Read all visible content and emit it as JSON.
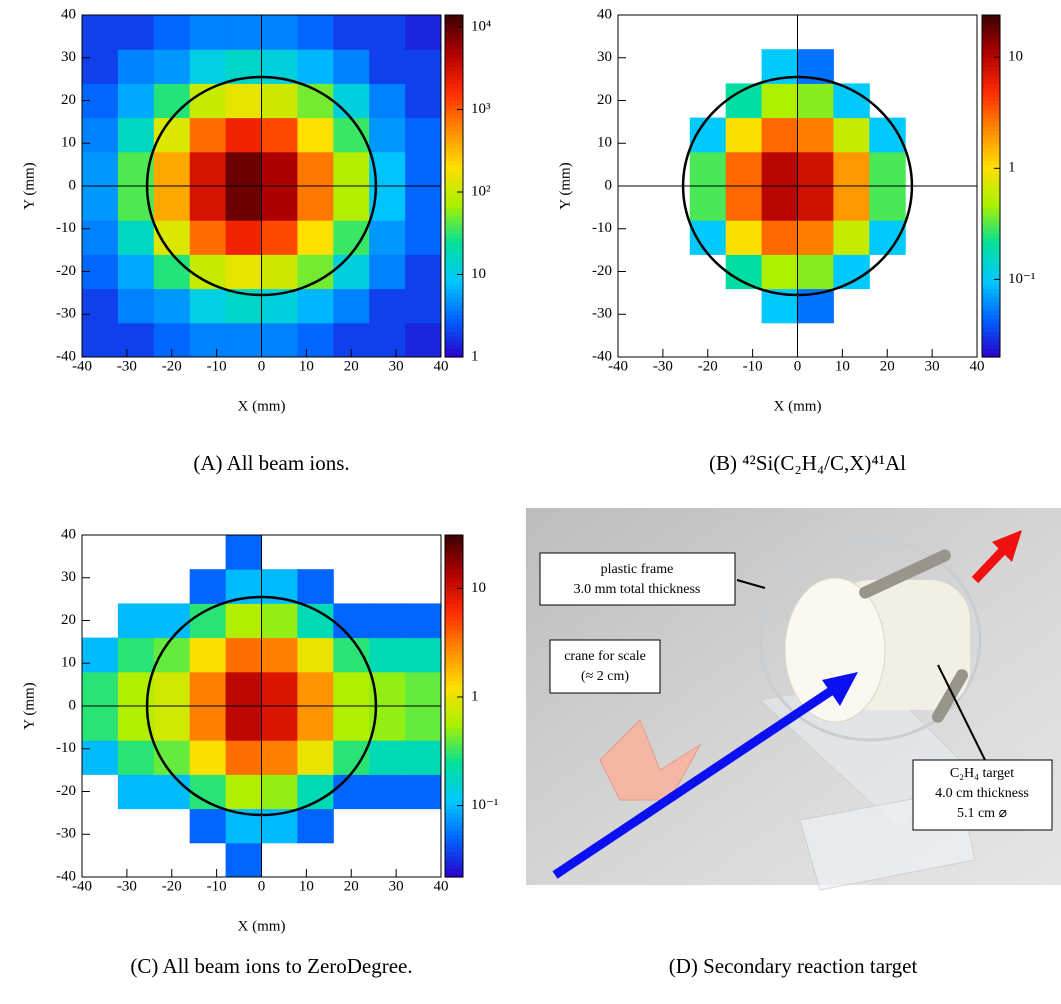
{
  "chart_data": [
    {
      "type": "heatmap",
      "caption": "(A) All beam ions.",
      "xlabel": "X (mm)",
      "ylabel": "Y (mm)",
      "xlim": [
        -40,
        40
      ],
      "ylim": [
        -40,
        40
      ],
      "xticks": [
        -40,
        -30,
        -20,
        -10,
        0,
        10,
        20,
        30,
        40
      ],
      "yticks": [
        -40,
        -30,
        -20,
        -10,
        0,
        10,
        20,
        30,
        40
      ],
      "xbins": [
        -40,
        -32,
        -24,
        -16,
        -8,
        0,
        8,
        16,
        24,
        32,
        40
      ],
      "ybins": [
        -40,
        -32,
        -24,
        -16,
        -8,
        0,
        8,
        16,
        24,
        32,
        40
      ],
      "z": [
        [
          2,
          2,
          3,
          4,
          4,
          4,
          3,
          2,
          2,
          1.5
        ],
        [
          2,
          4,
          5,
          11,
          15,
          12,
          7,
          4,
          2,
          2
        ],
        [
          3,
          6,
          30,
          100,
          150,
          110,
          50,
          12,
          4,
          2
        ],
        [
          4,
          16,
          130,
          800,
          2000,
          1200,
          200,
          35,
          5,
          3
        ],
        [
          5,
          40,
          400,
          3000,
          9000,
          5000,
          700,
          80,
          8,
          3
        ],
        [
          5,
          40,
          400,
          3000,
          9000,
          5000,
          700,
          80,
          8,
          3
        ],
        [
          4,
          16,
          130,
          800,
          2000,
          1200,
          200,
          35,
          5,
          3
        ],
        [
          3,
          6,
          30,
          100,
          150,
          110,
          50,
          12,
          4,
          2
        ],
        [
          2,
          4,
          5,
          11,
          15,
          12,
          7,
          4,
          2,
          2
        ],
        [
          2,
          2,
          3,
          4,
          4,
          4,
          3,
          2,
          2,
          1.5
        ]
      ],
      "zlim": [
        1,
        14000
      ],
      "zlog": true,
      "zticks": [
        1,
        10,
        {
          "value": 100,
          "label": "10²"
        },
        {
          "value": 1000,
          "label": "10³"
        },
        {
          "value": 10000,
          "label": "10⁴"
        }
      ],
      "circle_radius": 25.5
    },
    {
      "type": "heatmap",
      "caption": "(B) ⁴²Si(C₂H₄/C,X)⁴¹Al",
      "xlabel": "X (mm)",
      "ylabel": "Y (mm)",
      "xlim": [
        -40,
        40
      ],
      "ylim": [
        -40,
        40
      ],
      "xticks": [
        -40,
        -30,
        -20,
        -10,
        0,
        10,
        20,
        30,
        40
      ],
      "yticks": [
        -40,
        -30,
        -20,
        -10,
        0,
        10,
        20,
        30,
        40
      ],
      "xbins": [
        -40,
        -32,
        -24,
        -16,
        -8,
        0,
        8,
        16,
        24,
        32,
        40
      ],
      "ybins": [
        -40,
        -32,
        -24,
        -16,
        -8,
        0,
        8,
        16,
        24,
        32,
        40
      ],
      "z": [
        [
          null,
          null,
          null,
          null,
          null,
          null,
          null,
          null,
          null,
          null
        ],
        [
          null,
          null,
          null,
          null,
          0.1,
          0.05,
          null,
          null,
          null,
          null
        ],
        [
          null,
          null,
          null,
          0.2,
          0.5,
          0.4,
          0.1,
          null,
          null,
          null
        ],
        [
          null,
          null,
          0.1,
          1,
          3,
          2.5,
          0.6,
          0.1,
          null,
          null
        ],
        [
          null,
          null,
          0.3,
          3,
          10,
          8,
          2,
          0.3,
          null,
          null
        ],
        [
          null,
          null,
          0.3,
          3,
          10,
          8,
          2,
          0.3,
          null,
          null
        ],
        [
          null,
          null,
          0.1,
          1,
          3,
          2.5,
          0.6,
          0.1,
          null,
          null
        ],
        [
          null,
          null,
          null,
          0.2,
          0.5,
          0.4,
          0.1,
          null,
          null,
          null
        ],
        [
          null,
          null,
          null,
          null,
          0.1,
          0.05,
          null,
          null,
          null,
          null
        ],
        [
          null,
          null,
          null,
          null,
          null,
          null,
          null,
          null,
          null,
          null
        ]
      ],
      "zlim": [
        0.02,
        24
      ],
      "zlog": true,
      "zticks": [
        {
          "value": 0.1,
          "label": "10⁻¹"
        },
        1,
        10
      ],
      "circle_radius": 25.5
    },
    {
      "type": "heatmap",
      "caption": "(C) All beam ions to ZeroDegree.",
      "xlabel": "X (mm)",
      "ylabel": "Y (mm)",
      "xlim": [
        -40,
        40
      ],
      "ylim": [
        -40,
        40
      ],
      "xticks": [
        -40,
        -30,
        -20,
        -10,
        0,
        10,
        20,
        30,
        40
      ],
      "yticks": [
        -40,
        -30,
        -20,
        -10,
        0,
        10,
        20,
        30,
        40
      ],
      "xbins": [
        -40,
        -32,
        -24,
        -16,
        -8,
        0,
        8,
        16,
        24,
        32,
        40
      ],
      "ybins": [
        -40,
        -32,
        -24,
        -16,
        -8,
        0,
        8,
        16,
        24,
        32,
        40
      ],
      "z": [
        [
          null,
          null,
          null,
          null,
          0.05,
          null,
          null,
          null,
          null,
          null
        ],
        [
          null,
          null,
          null,
          0.05,
          0.1,
          0.1,
          0.05,
          null,
          null,
          null
        ],
        [
          null,
          0.1,
          0.1,
          0.3,
          0.6,
          0.5,
          0.2,
          0.05,
          0.05,
          0.05
        ],
        [
          0.1,
          0.3,
          0.4,
          1.2,
          3.5,
          3,
          1,
          0.3,
          0.2,
          0.2
        ],
        [
          0.3,
          0.6,
          0.8,
          3,
          12,
          9,
          2.5,
          0.6,
          0.5,
          0.4
        ],
        [
          0.3,
          0.6,
          0.8,
          3,
          12,
          9,
          2.5,
          0.6,
          0.5,
          0.4
        ],
        [
          0.1,
          0.3,
          0.4,
          1.2,
          3.5,
          3,
          1,
          0.3,
          0.2,
          0.2
        ],
        [
          null,
          0.1,
          0.1,
          0.3,
          0.6,
          0.5,
          0.2,
          0.05,
          0.05,
          0.05
        ],
        [
          null,
          null,
          null,
          0.05,
          0.1,
          0.1,
          0.05,
          null,
          null,
          null
        ],
        [
          null,
          null,
          null,
          null,
          0.05,
          null,
          null,
          null,
          null,
          null
        ]
      ],
      "zlim": [
        0.022,
        31
      ],
      "zlog": true,
      "zticks": [
        {
          "value": 0.1,
          "label": "10⁻¹"
        },
        1,
        10
      ],
      "circle_radius": 25.5
    }
  ],
  "colorscale": [
    "#2a00c8",
    "#0062ff",
    "#00c8ff",
    "#00e09a",
    "#a8f000",
    "#ffe000",
    "#ff8a00",
    "#ff2a00",
    "#b00000",
    "#3c0000"
  ],
  "photo": {
    "caption": "(D) Secondary reaction target",
    "labels": [
      [
        "plastic frame",
        "3.0 mm total thickness"
      ],
      [
        "crane for scale",
        "(≈ 2 cm)"
      ],
      [
        "C₂H₄ target",
        "4.0 cm thickness",
        "5.1 cm ⌀"
      ]
    ]
  }
}
